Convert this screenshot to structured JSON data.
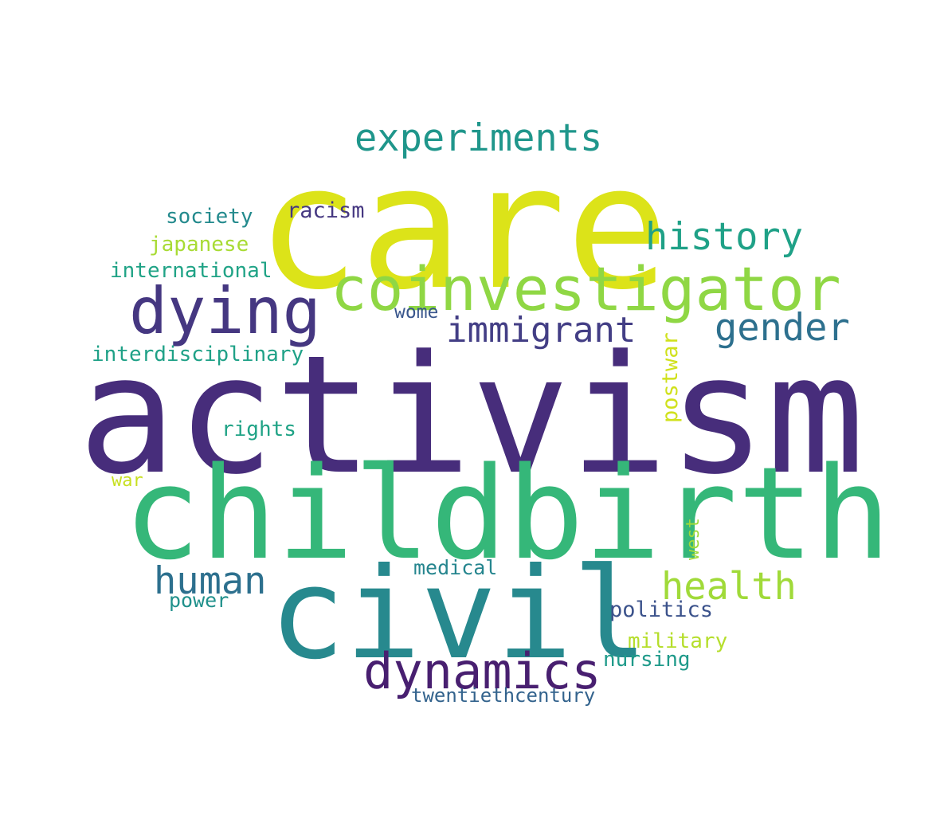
{
  "words": [
    {
      "text": "care",
      "color": "#dce319"
    },
    {
      "text": "experiments",
      "color": "#1f968b"
    },
    {
      "text": "society",
      "color": "#238a8d"
    },
    {
      "text": "racism",
      "color": "#453781"
    },
    {
      "text": "japanese",
      "color": "#a8db34"
    },
    {
      "text": "history",
      "color": "#1fa187"
    },
    {
      "text": "international",
      "color": "#20a386"
    },
    {
      "text": "coinvestigator",
      "color": "#8fd744"
    },
    {
      "text": "dying",
      "color": "#453781"
    },
    {
      "text": "wome",
      "color": "#39568c"
    },
    {
      "text": "immigrant",
      "color": "#433e85"
    },
    {
      "text": "gender",
      "color": "#2d708e"
    },
    {
      "text": "interdisciplinary",
      "color": "#1fa187"
    },
    {
      "text": "postwar",
      "color": "#d0e11c"
    },
    {
      "text": "activism",
      "color": "#472d7b"
    },
    {
      "text": "rights",
      "color": "#20a386"
    },
    {
      "text": "war",
      "color": "#c8e020"
    },
    {
      "text": "childbirth",
      "color": "#35b779"
    },
    {
      "text": "west",
      "color": "#a0da39"
    },
    {
      "text": "medical",
      "color": "#25858e"
    },
    {
      "text": "human",
      "color": "#2d708e"
    },
    {
      "text": "health",
      "color": "#a0da39"
    },
    {
      "text": "power",
      "color": "#21918c"
    },
    {
      "text": "civil",
      "color": "#27898e"
    },
    {
      "text": "politics",
      "color": "#3b528b"
    },
    {
      "text": "military",
      "color": "#b5de2b"
    },
    {
      "text": "nursing",
      "color": "#1f9a8a"
    },
    {
      "text": "dynamics",
      "color": "#481f70"
    },
    {
      "text": "twentiethcentury",
      "color": "#33638d"
    }
  ]
}
